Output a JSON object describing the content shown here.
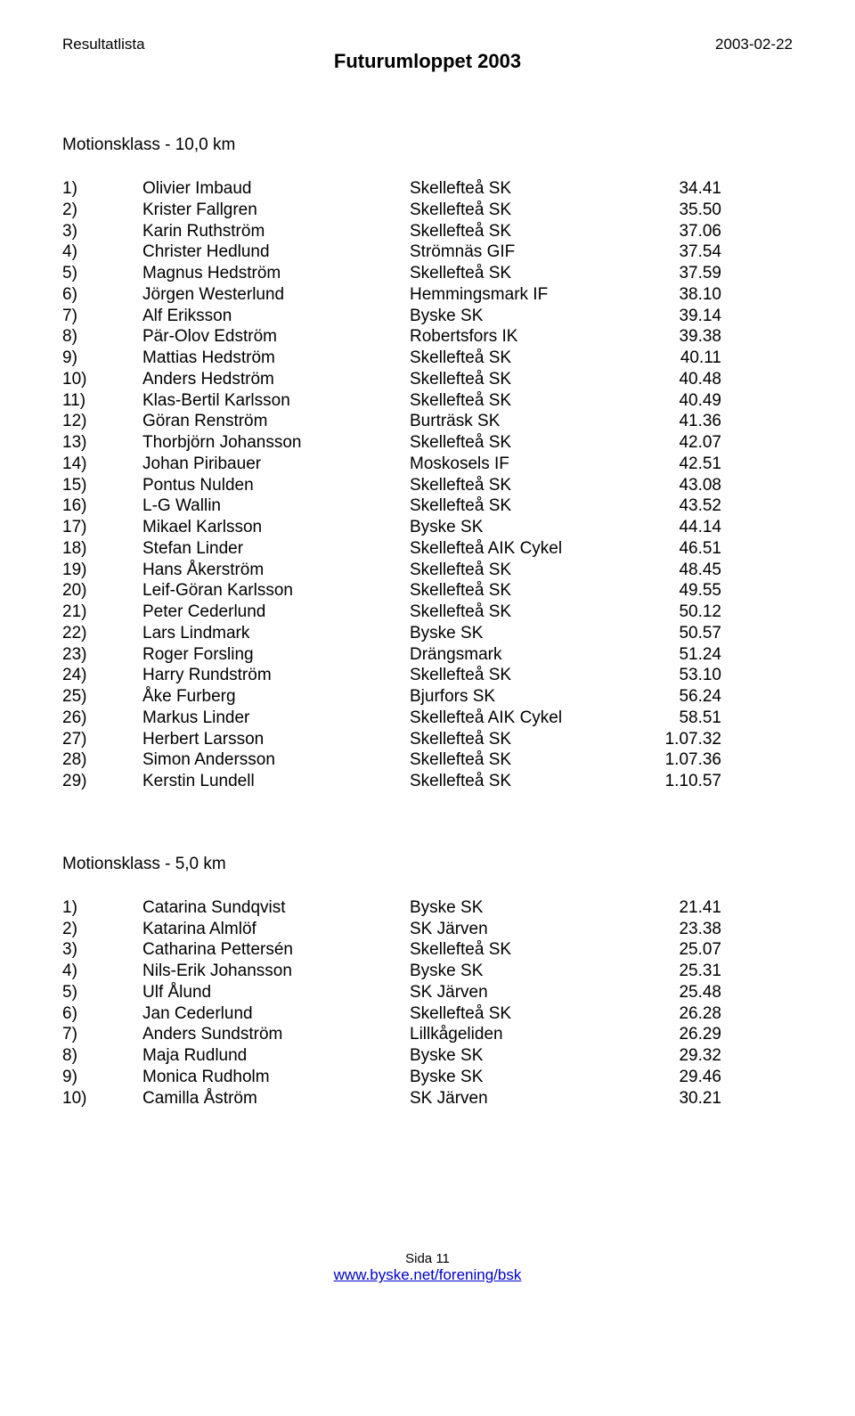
{
  "header": {
    "top_left": "Resultatlista",
    "top_right": "2003-02-22",
    "event_title": "Futurumloppet 2003"
  },
  "sections": [
    {
      "heading": "Motionsklass  -  10,0 km",
      "rows": [
        {
          "p": "1)",
          "n": "Olivier Imbaud",
          "c": "Skellefteå SK",
          "t": "34.41"
        },
        {
          "p": "2)",
          "n": "Krister Fallgren",
          "c": "Skellefteå SK",
          "t": "35.50"
        },
        {
          "p": "3)",
          "n": "Karin Ruthström",
          "c": "Skellefteå SK",
          "t": "37.06"
        },
        {
          "p": "4)",
          "n": "Christer Hedlund",
          "c": "Strömnäs GIF",
          "t": "37.54"
        },
        {
          "p": "5)",
          "n": "Magnus Hedström",
          "c": "Skellefteå SK",
          "t": "37.59"
        },
        {
          "p": "6)",
          "n": "Jörgen Westerlund",
          "c": "Hemmingsmark IF",
          "t": "38.10"
        },
        {
          "p": "7)",
          "n": "Alf Eriksson",
          "c": "Byske SK",
          "t": "39.14"
        },
        {
          "p": "8)",
          "n": "Pär-Olov Edström",
          "c": "Robertsfors IK",
          "t": "39.38"
        },
        {
          "p": "9)",
          "n": "Mattias Hedström",
          "c": "Skellefteå SK",
          "t": "40.11"
        },
        {
          "p": "10)",
          "n": "Anders Hedström",
          "c": "Skellefteå SK",
          "t": "40.48"
        },
        {
          "p": "11)",
          "n": "Klas-Bertil Karlsson",
          "c": "Skellefteå SK",
          "t": "40.49"
        },
        {
          "p": "12)",
          "n": "Göran Renström",
          "c": "Burträsk SK",
          "t": "41.36"
        },
        {
          "p": "13)",
          "n": "Thorbjörn Johansson",
          "c": "Skellefteå SK",
          "t": "42.07"
        },
        {
          "p": "14)",
          "n": "Johan Piribauer",
          "c": "Moskosels IF",
          "t": "42.51"
        },
        {
          "p": "15)",
          "n": "Pontus Nulden",
          "c": "Skellefteå SK",
          "t": "43.08"
        },
        {
          "p": "16)",
          "n": "L-G Wallin",
          "c": "Skellefteå SK",
          "t": "43.52"
        },
        {
          "p": "17)",
          "n": "Mikael Karlsson",
          "c": "Byske SK",
          "t": "44.14"
        },
        {
          "p": "18)",
          "n": "Stefan Linder",
          "c": "Skellefteå AIK Cykel",
          "t": "46.51"
        },
        {
          "p": "19)",
          "n": "Hans Åkerström",
          "c": "Skellefteå SK",
          "t": "48.45"
        },
        {
          "p": "20)",
          "n": "Leif-Göran Karlsson",
          "c": "Skellefteå SK",
          "t": "49.55"
        },
        {
          "p": "21)",
          "n": "Peter Cederlund",
          "c": "Skellefteå SK",
          "t": "50.12"
        },
        {
          "p": "22)",
          "n": "Lars Lindmark",
          "c": "Byske SK",
          "t": "50.57"
        },
        {
          "p": "23)",
          "n": "Roger Forsling",
          "c": "Drängsmark",
          "t": "51.24"
        },
        {
          "p": "24)",
          "n": "Harry Rundström",
          "c": "Skellefteå SK",
          "t": "53.10"
        },
        {
          "p": "25)",
          "n": "Åke Furberg",
          "c": "Bjurfors SK",
          "t": "56.24"
        },
        {
          "p": "26)",
          "n": "Markus Linder",
          "c": "Skellefteå AIK Cykel",
          "t": "58.51"
        },
        {
          "p": "27)",
          "n": "Herbert Larsson",
          "c": "Skellefteå SK",
          "t": "1.07.32"
        },
        {
          "p": "28)",
          "n": "Simon Andersson",
          "c": "Skellefteå SK",
          "t": "1.07.36"
        },
        {
          "p": "29)",
          "n": "Kerstin Lundell",
          "c": "Skellefteå SK",
          "t": "1.10.57"
        }
      ]
    },
    {
      "heading": "Motionsklass  -  5,0 km",
      "rows": [
        {
          "p": "1)",
          "n": "Catarina Sundqvist",
          "c": "Byske SK",
          "t": "21.41"
        },
        {
          "p": "2)",
          "n": "Katarina Almlöf",
          "c": "SK Järven",
          "t": "23.38"
        },
        {
          "p": "3)",
          "n": "Catharina Pettersén",
          "c": "Skellefteå SK",
          "t": "25.07"
        },
        {
          "p": "4)",
          "n": "Nils-Erik Johansson",
          "c": "Byske SK",
          "t": "25.31"
        },
        {
          "p": "5)",
          "n": "Ulf Ålund",
          "c": "SK Järven",
          "t": "25.48"
        },
        {
          "p": "6)",
          "n": "Jan Cederlund",
          "c": "Skellefteå SK",
          "t": "26.28"
        },
        {
          "p": "7)",
          "n": "Anders Sundström",
          "c": "Lillkågeliden",
          "t": "26.29"
        },
        {
          "p": "8)",
          "n": "Maja Rudlund",
          "c": "Byske SK",
          "t": "29.32"
        },
        {
          "p": "9)",
          "n": "Monica Rudholm",
          "c": "Byske SK",
          "t": "29.46"
        },
        {
          "p": "10)",
          "n": "Camilla Åström",
          "c": "SK Järven",
          "t": "30.21"
        }
      ]
    }
  ],
  "footer": {
    "page_label": "Sida",
    "page_number": "11",
    "link_text": "www.byske.net/forening/bsk"
  }
}
